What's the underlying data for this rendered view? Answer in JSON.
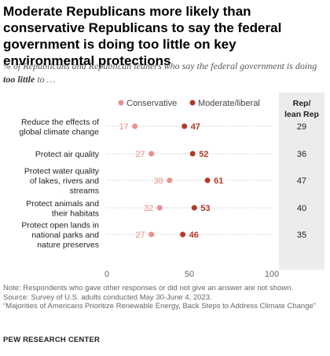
{
  "title": "Moderate Republicans more likely than conservative Republicans to say the federal government is doing too little on key environmental protections",
  "subtitle_pre": "% of Republicans and Republican leaners who say the federal government is doing ",
  "subtitle_bold": "too little",
  "subtitle_post": " to …",
  "chart_data": {
    "type": "dot",
    "title": "Moderate Republicans more likely than conservative Republicans to say the federal government is doing too little on key environmental protections",
    "xlim": [
      0,
      100
    ],
    "x_ticks": [
      "0",
      "50",
      "100"
    ],
    "legend": [
      "Conservative",
      "Moderate/liberal"
    ],
    "legend_placement": "top",
    "side_header": "Rep/ lean Rep",
    "categories": [
      "Reduce the effects of global climate change",
      "Protect air quality",
      "Protect water quality of lakes, rivers and streams",
      "Protect animals and their habitats",
      "Protect open lands in national parks and nature preserves"
    ],
    "series": [
      {
        "name": "Conservative",
        "values": [
          17,
          27,
          38,
          32,
          27
        ],
        "color": "#e8908a"
      },
      {
        "name": "Moderate/liberal",
        "values": [
          47,
          52,
          61,
          53,
          46
        ],
        "color": "#b23a2b"
      }
    ],
    "rep_lean_rep": [
      29,
      36,
      47,
      40,
      35
    ]
  },
  "notes": [
    "Note: Respondents who gave other responses or did not give an answer are not shown.",
    "Source: Survey of U.S. adults conducted May 30-June 4, 2023.",
    "“Majorities of Americans Prioritize Renewable Energy, Back Steps to Address Climate Change”"
  ],
  "source_org": "PEW RESEARCH CENTER",
  "colors": {
    "conservative": "#e8908a",
    "moderate": "#b23a2b",
    "side_column_bg": "#ececec",
    "dotted_line": "#bbbbbb"
  }
}
